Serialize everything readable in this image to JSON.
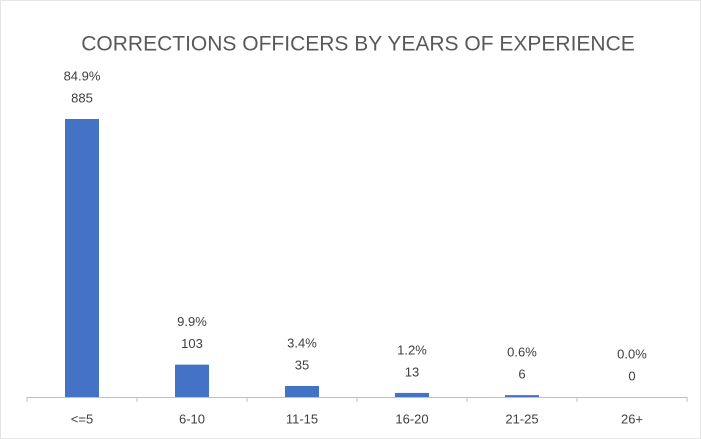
{
  "chart_data": {
    "type": "bar",
    "title": "CORRECTIONS OFFICERS BY YEARS OF EXPERIENCE",
    "categories": [
      "<=5",
      "6-10",
      "11-15",
      "16-20",
      "21-25",
      "26+"
    ],
    "values": [
      885,
      103,
      35,
      13,
      6,
      0
    ],
    "percent": [
      84.9,
      9.9,
      3.4,
      1.2,
      0.6,
      0.0
    ],
    "percent_labels": [
      "84.9%",
      "9.9%",
      "3.4%",
      "1.2%",
      "0.6%",
      "0.0%"
    ],
    "color": "#4472c4"
  }
}
